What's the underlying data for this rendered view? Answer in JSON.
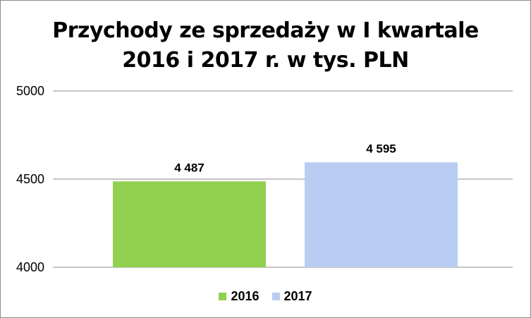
{
  "chart_data": {
    "type": "bar",
    "title_line1": "Przychody ze sprzedaży w I kwartale",
    "title_line2": "2016 i 2017 r. w tys. PLN",
    "categories": [
      ""
    ],
    "series": [
      {
        "name": "2016",
        "values": [
          4487
        ],
        "label": "4 487",
        "color": "#92d050"
      },
      {
        "name": "2017",
        "values": [
          4595
        ],
        "label": "4 595",
        "color": "#b9cdf2"
      }
    ],
    "ylim": [
      4000,
      5000
    ],
    "yticks": [
      4000,
      4500,
      5000
    ],
    "ytick_labels": [
      "4000",
      "4500",
      "5000"
    ],
    "grid": true,
    "legend_position": "bottom"
  }
}
